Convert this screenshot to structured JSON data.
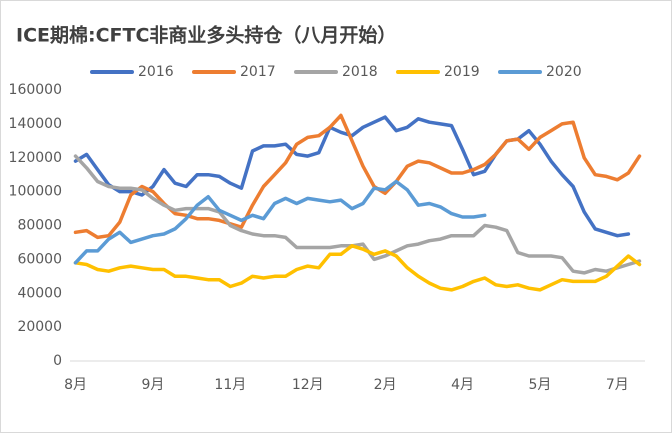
{
  "chart_data": {
    "type": "line",
    "title": "ICE期棉:CFTC非商业多头持仓（八月开始）",
    "categories": [
      "8月",
      null,
      null,
      null,
      null,
      null,
      null,
      "9月",
      null,
      null,
      null,
      null,
      null,
      null,
      "11月",
      null,
      null,
      null,
      null,
      null,
      null,
      "12月",
      null,
      null,
      null,
      null,
      null,
      null,
      "2月",
      null,
      null,
      null,
      null,
      null,
      null,
      "4月",
      null,
      null,
      null,
      null,
      null,
      null,
      "5月",
      null,
      null,
      null,
      null,
      null,
      null,
      "7月",
      null,
      null
    ],
    "ylim": [
      0,
      160000
    ],
    "yticks": [
      0,
      20000,
      40000,
      60000,
      80000,
      100000,
      120000,
      140000,
      160000
    ],
    "grid": false,
    "legend": "top",
    "series": [
      {
        "name": "2016",
        "color": "#4472c4",
        "values": [
          118000,
          122000,
          113000,
          104000,
          100000,
          100000,
          98000,
          103000,
          113000,
          105000,
          103000,
          110000,
          110000,
          109000,
          105000,
          102000,
          124000,
          127000,
          127000,
          128000,
          122000,
          121000,
          123000,
          138000,
          135000,
          133000,
          138000,
          141000,
          144000,
          136000,
          138000,
          143000,
          141000,
          140000,
          139000,
          125000,
          110000,
          112000,
          122000,
          130000,
          131000,
          136000,
          128000,
          118000,
          110000,
          103000,
          88000,
          78000,
          76000,
          74000,
          75000,
          null
        ]
      },
      {
        "name": "2017",
        "color": "#ed7d31",
        "values": [
          76000,
          77000,
          73000,
          74000,
          82000,
          98000,
          103000,
          100000,
          93000,
          87000,
          86000,
          84000,
          84000,
          83000,
          81000,
          79000,
          92000,
          103000,
          110000,
          117000,
          128000,
          132000,
          133000,
          138000,
          145000,
          130000,
          115000,
          103000,
          99000,
          106000,
          115000,
          118000,
          117000,
          114000,
          111000,
          111000,
          113000,
          116000,
          122000,
          130000,
          131000,
          125000,
          132000,
          136000,
          140000,
          141000,
          120000,
          110000,
          109000,
          107000,
          111000,
          121000
        ]
      },
      {
        "name": "2018",
        "color": "#a5a5a5",
        "values": [
          121000,
          114000,
          106000,
          103000,
          102000,
          102000,
          101000,
          96000,
          92000,
          89000,
          90000,
          90000,
          90000,
          88000,
          80000,
          77000,
          75000,
          74000,
          74000,
          73000,
          67000,
          67000,
          67000,
          67000,
          68000,
          68000,
          69000,
          60000,
          62000,
          65000,
          68000,
          69000,
          71000,
          72000,
          74000,
          74000,
          74000,
          80000,
          79000,
          77000,
          64000,
          62000,
          62000,
          62000,
          61000,
          53000,
          52000,
          54000,
          53000,
          55000,
          57000,
          59000
        ]
      },
      {
        "name": "2019",
        "color": "#ffc000",
        "values": [
          58000,
          57000,
          54000,
          53000,
          55000,
          56000,
          55000,
          54000,
          54000,
          50000,
          50000,
          49000,
          48000,
          48000,
          44000,
          46000,
          50000,
          49000,
          50000,
          50000,
          54000,
          56000,
          55000,
          63000,
          63000,
          68000,
          66000,
          63000,
          65000,
          62000,
          55000,
          50000,
          46000,
          43000,
          42000,
          44000,
          47000,
          49000,
          45000,
          44000,
          45000,
          43000,
          42000,
          45000,
          48000,
          47000,
          47000,
          47000,
          50000,
          56000,
          62000,
          57000
        ]
      },
      {
        "name": "2020",
        "color": "#5b9bd5",
        "values": [
          58000,
          65000,
          65000,
          72000,
          76000,
          70000,
          72000,
          74000,
          75000,
          78000,
          84000,
          92000,
          97000,
          89000,
          86000,
          83000,
          86000,
          84000,
          93000,
          96000,
          93000,
          96000,
          95000,
          94000,
          95000,
          90000,
          93000,
          102000,
          101000,
          106000,
          101000,
          92000,
          93000,
          91000,
          87000,
          85000,
          85000,
          86000,
          null,
          null,
          null,
          null,
          null,
          null,
          null,
          null,
          null,
          null,
          null,
          null,
          null,
          null
        ]
      }
    ]
  }
}
